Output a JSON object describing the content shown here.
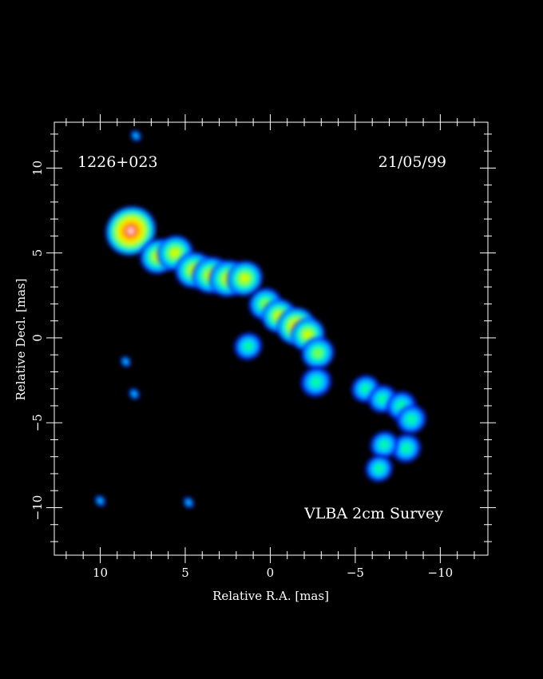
{
  "chart_data": {
    "type": "heatmap",
    "title": "",
    "source_name": "1226+023",
    "date": "21/05/99",
    "survey": "VLBA 2cm Survey",
    "xlabel": "Relative R.A. [mas]",
    "ylabel": "Relative Decl. [mas]",
    "xlim": [
      12.7,
      -12.8
    ],
    "ylim": [
      -12.8,
      12.7
    ],
    "x_ticks": [
      10,
      5,
      0,
      -5,
      -10
    ],
    "x_tick_labels": [
      "10",
      "5",
      "0",
      "−5",
      "−10"
    ],
    "y_ticks": [
      10,
      5,
      0,
      -5,
      -10
    ],
    "y_tick_labels": [
      "10",
      "5",
      "0",
      "−5",
      "−10"
    ],
    "grid": false,
    "colormap": [
      "#0033ff",
      "#00c8ff",
      "#00ff9a",
      "#7dff00",
      "#e8ff00",
      "#ffd000",
      "#ff9a00",
      "#ff2a00",
      "#ffffff"
    ],
    "components": [
      {
        "x": 8.2,
        "y": 6.3,
        "level": 1.0
      },
      {
        "x": 6.6,
        "y": 4.8,
        "level": 0.55
      },
      {
        "x": 5.6,
        "y": 5.0,
        "level": 0.55
      },
      {
        "x": 4.5,
        "y": 4.0,
        "level": 0.58
      },
      {
        "x": 3.5,
        "y": 3.7,
        "level": 0.6
      },
      {
        "x": 2.5,
        "y": 3.5,
        "level": 0.6
      },
      {
        "x": 1.5,
        "y": 3.5,
        "level": 0.55
      },
      {
        "x": 0.3,
        "y": 2.0,
        "level": 0.45
      },
      {
        "x": -0.5,
        "y": 1.3,
        "level": 0.5
      },
      {
        "x": -1.5,
        "y": 0.7,
        "level": 0.62
      },
      {
        "x": -2.2,
        "y": 0.2,
        "level": 0.5
      },
      {
        "x": -2.8,
        "y": -0.9,
        "level": 0.45
      },
      {
        "x": -2.7,
        "y": -2.6,
        "level": 0.38
      },
      {
        "x": 1.3,
        "y": -0.5,
        "level": 0.3
      },
      {
        "x": -5.6,
        "y": -3.0,
        "level": 0.3
      },
      {
        "x": -6.6,
        "y": -3.6,
        "level": 0.32
      },
      {
        "x": -7.7,
        "y": -4.0,
        "level": 0.35
      },
      {
        "x": -8.3,
        "y": -4.8,
        "level": 0.35
      },
      {
        "x": -8.0,
        "y": -6.5,
        "level": 0.34
      },
      {
        "x": -6.7,
        "y": -6.3,
        "level": 0.3
      },
      {
        "x": -6.4,
        "y": -7.7,
        "level": 0.28
      },
      {
        "x": 7.9,
        "y": 11.9,
        "level": 0.2
      },
      {
        "x": 10.0,
        "y": -9.6,
        "level": 0.2
      },
      {
        "x": 4.8,
        "y": -9.7,
        "level": 0.2
      },
      {
        "x": 8.0,
        "y": -3.3,
        "level": 0.2
      },
      {
        "x": 8.5,
        "y": -1.4,
        "level": 0.18
      }
    ]
  }
}
